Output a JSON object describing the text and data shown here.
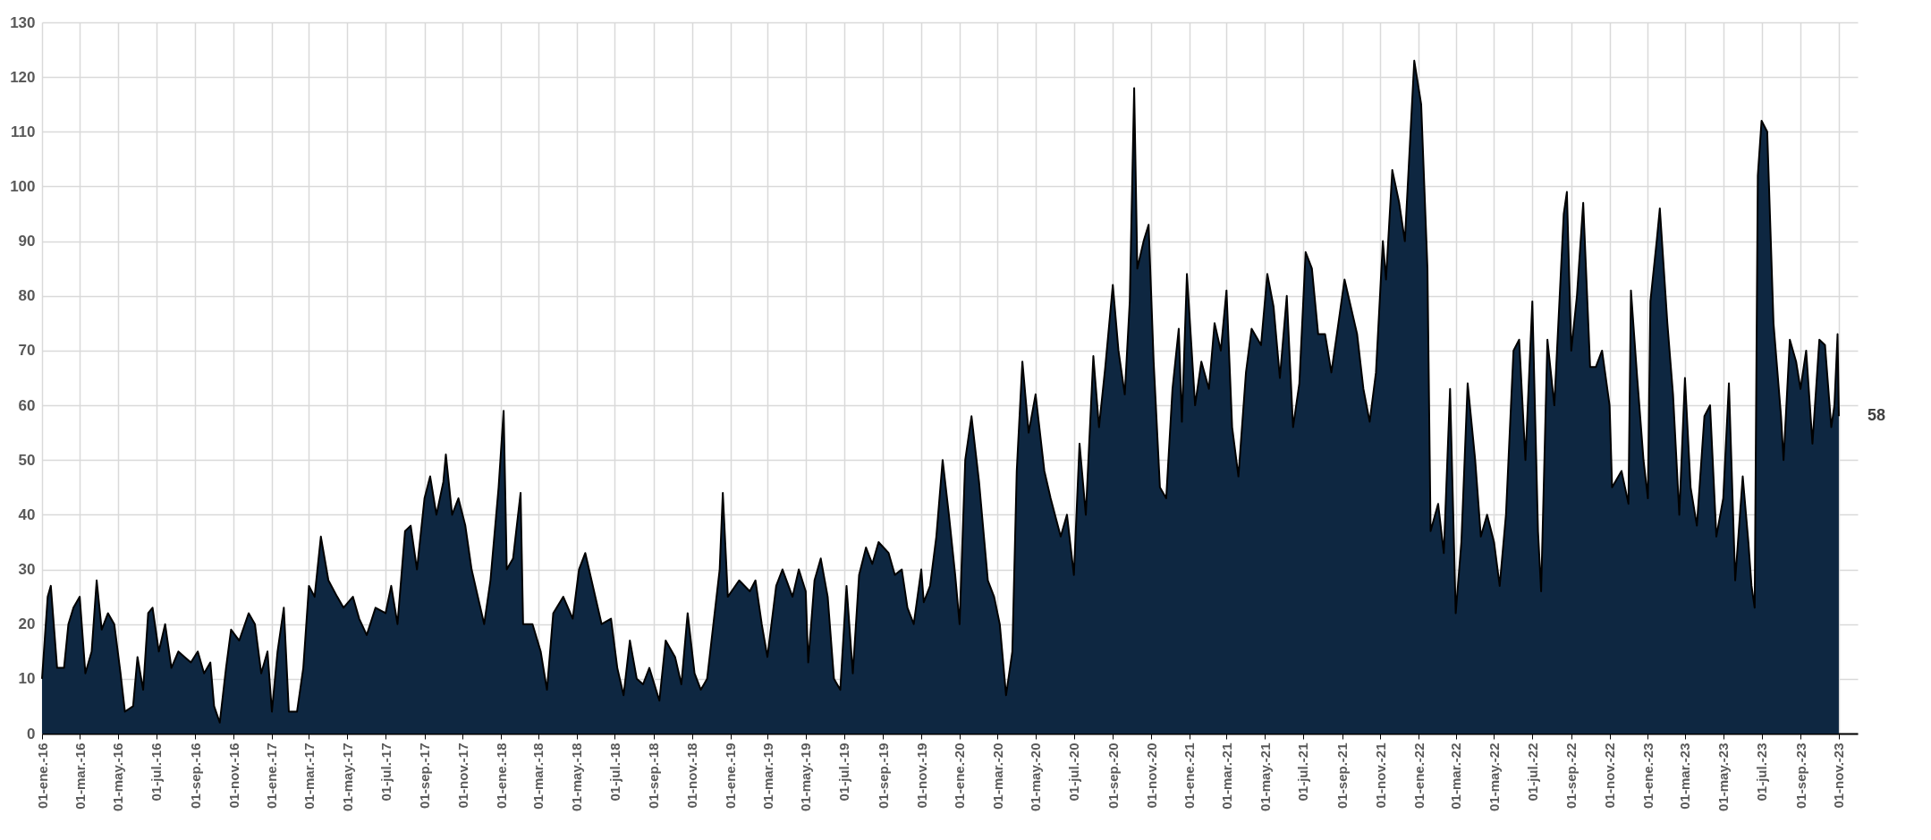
{
  "chart_data": {
    "type": "area",
    "color": "#0e2741",
    "x": [
      "2016-01-01",
      "2016-01-10",
      "2016-01-15",
      "2016-01-25",
      "2016-02-05",
      "2016-02-12",
      "2016-02-20",
      "2016-03-01",
      "2016-03-10",
      "2016-03-20",
      "2016-03-28",
      "2016-04-05",
      "2016-04-15",
      "2016-04-25",
      "2016-05-05",
      "2016-05-12",
      "2016-05-25",
      "2016-06-01",
      "2016-06-10",
      "2016-06-18",
      "2016-06-25",
      "2016-07-05",
      "2016-07-15",
      "2016-07-25",
      "2016-08-05",
      "2016-08-15",
      "2016-08-25",
      "2016-09-05",
      "2016-09-15",
      "2016-09-25",
      "2016-10-01",
      "2016-10-10",
      "2016-10-20",
      "2016-10-28",
      "2016-11-10",
      "2016-11-25",
      "2016-12-05",
      "2016-12-15",
      "2016-12-25",
      "2017-01-01",
      "2017-01-10",
      "2017-01-20",
      "2017-01-28",
      "2017-02-10",
      "2017-02-20",
      "2017-03-01",
      "2017-03-10",
      "2017-03-20",
      "2017-04-01",
      "2017-04-15",
      "2017-04-25",
      "2017-05-10",
      "2017-05-20",
      "2017-06-01",
      "2017-06-15",
      "2017-07-01",
      "2017-07-10",
      "2017-07-20",
      "2017-08-01",
      "2017-08-10",
      "2017-08-20",
      "2017-09-01",
      "2017-09-10",
      "2017-09-20",
      "2017-10-01",
      "2017-10-05",
      "2017-10-15",
      "2017-10-25",
      "2017-11-05",
      "2017-11-15",
      "2017-11-25",
      "2017-12-05",
      "2017-12-15",
      "2017-12-28",
      "2018-01-05",
      "2018-01-10",
      "2018-01-20",
      "2018-02-01",
      "2018-02-05",
      "2018-02-20",
      "2018-03-05",
      "2018-03-15",
      "2018-03-25",
      "2018-04-10",
      "2018-04-25",
      "2018-05-05",
      "2018-05-15",
      "2018-05-25",
      "2018-06-10",
      "2018-06-25",
      "2018-07-05",
      "2018-07-15",
      "2018-07-25",
      "2018-08-05",
      "2018-08-15",
      "2018-08-25",
      "2018-09-10",
      "2018-09-20",
      "2018-10-05",
      "2018-10-15",
      "2018-10-25",
      "2018-11-05",
      "2018-11-15",
      "2018-11-25",
      "2018-12-05",
      "2018-12-15",
      "2018-12-20",
      "2018-12-28",
      "2019-01-15",
      "2019-02-01",
      "2019-02-10",
      "2019-02-20",
      "2019-03-01",
      "2019-03-15",
      "2019-03-25",
      "2019-04-10",
      "2019-04-20",
      "2019-05-01",
      "2019-05-05",
      "2019-05-15",
      "2019-05-25",
      "2019-06-05",
      "2019-06-15",
      "2019-06-25",
      "2019-07-05",
      "2019-07-15",
      "2019-07-25",
      "2019-08-05",
      "2019-08-15",
      "2019-08-25",
      "2019-09-10",
      "2019-09-20",
      "2019-10-01",
      "2019-10-10",
      "2019-10-20",
      "2019-11-01",
      "2019-11-05",
      "2019-11-15",
      "2019-11-25",
      "2019-12-05",
      "2019-12-15",
      "2019-12-25",
      "2020-01-01",
      "2020-01-10",
      "2020-01-20",
      "2020-02-01",
      "2020-02-15",
      "2020-02-25",
      "2020-03-05",
      "2020-03-15",
      "2020-03-25",
      "2020-04-01",
      "2020-04-10",
      "2020-04-20",
      "2020-05-01",
      "2020-05-15",
      "2020-05-25",
      "2020-06-10",
      "2020-06-20",
      "2020-07-01",
      "2020-07-10",
      "2020-07-20",
      "2020-08-01",
      "2020-08-10",
      "2020-08-20",
      "2020-09-01",
      "2020-09-10",
      "2020-09-20",
      "2020-09-28",
      "2020-10-05",
      "2020-10-10",
      "2020-10-20",
      "2020-10-28",
      "2020-11-05",
      "2020-11-15",
      "2020-11-25",
      "2020-12-05",
      "2020-12-15",
      "2020-12-20",
      "2020-12-28",
      "2021-01-10",
      "2021-01-20",
      "2021-02-01",
      "2021-02-10",
      "2021-02-20",
      "2021-03-01",
      "2021-03-10",
      "2021-03-20",
      "2021-04-01",
      "2021-04-10",
      "2021-04-25",
      "2021-05-05",
      "2021-05-15",
      "2021-05-25",
      "2021-06-05",
      "2021-06-15",
      "2021-06-25",
      "2021-07-05",
      "2021-07-15",
      "2021-07-25",
      "2021-08-05",
      "2021-08-15",
      "2021-08-25",
      "2021-09-05",
      "2021-09-15",
      "2021-09-25",
      "2021-10-05",
      "2021-10-15",
      "2021-10-25",
      "2021-11-05",
      "2021-11-10",
      "2021-11-20",
      "2021-12-01",
      "2021-12-10",
      "2021-12-25",
      "2022-01-05",
      "2022-01-15",
      "2022-01-20",
      "2022-02-01",
      "2022-02-10",
      "2022-02-20",
      "2022-03-01",
      "2022-03-10",
      "2022-03-20",
      "2022-04-01",
      "2022-04-10",
      "2022-04-20",
      "2022-05-01",
      "2022-05-10",
      "2022-05-20",
      "2022-06-01",
      "2022-06-10",
      "2022-06-20",
      "2022-07-01",
      "2022-07-10",
      "2022-07-15",
      "2022-07-25",
      "2022-08-05",
      "2022-08-20",
      "2022-08-25",
      "2022-09-01",
      "2022-09-10",
      "2022-09-20",
      "2022-10-01",
      "2022-10-10",
      "2022-10-20",
      "2022-11-01",
      "2022-11-05",
      "2022-11-20",
      "2022-12-01",
      "2022-12-05",
      "2022-12-15",
      "2022-12-25",
      "2023-01-01",
      "2023-01-05",
      "2023-01-15",
      "2023-01-20",
      "2023-02-01",
      "2023-02-10",
      "2023-02-20",
      "2023-03-01",
      "2023-03-10",
      "2023-03-20",
      "2023-04-01",
      "2023-04-10",
      "2023-04-20",
      "2023-05-01",
      "2023-05-10",
      "2023-05-20",
      "2023-06-01",
      "2023-06-10",
      "2023-06-15",
      "2023-06-20",
      "2023-06-25",
      "2023-07-01",
      "2023-07-10",
      "2023-07-20",
      "2023-08-01",
      "2023-08-05",
      "2023-08-15",
      "2023-08-25",
      "2023-09-01",
      "2023-09-10",
      "2023-09-20",
      "2023-10-01",
      "2023-10-10",
      "2023-10-20",
      "2023-10-25",
      "2023-10-30",
      "2023-11-01"
    ],
    "values": [
      10,
      25,
      27,
      12,
      12,
      20,
      23,
      25,
      11,
      15,
      28,
      19,
      22,
      20,
      11,
      4,
      5,
      14,
      8,
      22,
      23,
      15,
      20,
      12,
      15,
      14,
      13,
      15,
      11,
      13,
      5,
      2,
      12,
      19,
      17,
      22,
      20,
      11,
      15,
      4,
      15,
      23,
      4,
      4,
      12,
      27,
      25,
      36,
      28,
      25,
      23,
      25,
      21,
      18,
      23,
      22,
      27,
      20,
      37,
      38,
      30,
      43,
      47,
      40,
      46,
      51,
      40,
      43,
      38,
      30,
      25,
      20,
      28,
      45,
      59,
      30,
      32,
      44,
      20,
      20,
      15,
      8,
      22,
      25,
      21,
      30,
      33,
      28,
      20,
      21,
      12,
      7,
      17,
      10,
      9,
      12,
      6,
      17,
      14,
      9,
      22,
      11,
      8,
      10,
      20,
      30,
      44,
      25,
      28,
      26,
      28,
      20,
      14,
      27,
      30,
      25,
      30,
      26,
      13,
      28,
      32,
      25,
      10,
      8,
      27,
      11,
      29,
      34,
      31,
      35,
      33,
      29,
      30,
      23,
      20,
      30,
      24,
      27,
      36,
      50,
      40,
      29,
      20,
      50,
      58,
      46,
      28,
      25,
      20,
      7,
      15,
      48,
      68,
      55,
      62,
      48,
      43,
      36,
      40,
      29,
      53,
      40,
      69,
      56,
      67,
      82,
      70,
      62,
      79,
      118,
      85,
      90,
      93,
      68,
      45,
      43,
      63,
      74,
      57,
      84,
      60,
      68,
      63,
      75,
      70,
      81,
      56,
      47,
      66,
      74,
      71,
      84,
      78,
      65,
      80,
      56,
      64,
      88,
      85,
      73,
      73,
      66,
      74,
      83,
      78,
      73,
      63,
      57,
      66,
      90,
      83,
      103,
      97,
      90,
      123,
      115,
      85,
      37,
      42,
      33,
      63,
      22,
      35,
      64,
      50,
      36,
      40,
      35,
      27,
      40,
      70,
      72,
      50,
      79,
      37,
      26,
      72,
      60,
      95,
      99,
      70,
      80,
      97,
      67,
      67,
      70,
      60,
      45,
      48,
      42,
      81,
      65,
      50,
      43,
      79,
      90,
      96,
      75,
      62,
      40,
      65,
      45,
      38,
      58,
      60,
      36,
      43,
      64,
      28,
      47,
      35,
      27,
      23,
      102,
      112,
      110,
      75,
      58,
      50,
      72,
      68,
      63,
      70,
      53,
      72,
      71,
      56,
      60,
      73,
      58
    ],
    "xlim": [
      "2016-01-01",
      "2023-12-01"
    ],
    "xticks": [
      {
        "value": "2016-01-01",
        "label": "01-ene.-16"
      },
      {
        "value": "2016-03-01",
        "label": "01-mar.-16"
      },
      {
        "value": "2016-05-01",
        "label": "01-may.-16"
      },
      {
        "value": "2016-07-01",
        "label": "01-jul.-16"
      },
      {
        "value": "2016-09-01",
        "label": "01-sep.-16"
      },
      {
        "value": "2016-11-01",
        "label": "01-nov.-16"
      },
      {
        "value": "2017-01-01",
        "label": "01-ene.-17"
      },
      {
        "value": "2017-03-01",
        "label": "01-mar.-17"
      },
      {
        "value": "2017-05-01",
        "label": "01-may.-17"
      },
      {
        "value": "2017-07-01",
        "label": "01-jul.-17"
      },
      {
        "value": "2017-09-01",
        "label": "01-sep.-17"
      },
      {
        "value": "2017-11-01",
        "label": "01-nov.-17"
      },
      {
        "value": "2018-01-01",
        "label": "01-ene.-18"
      },
      {
        "value": "2018-03-01",
        "label": "01-mar.-18"
      },
      {
        "value": "2018-05-01",
        "label": "01-may.-18"
      },
      {
        "value": "2018-07-01",
        "label": "01-jul.-18"
      },
      {
        "value": "2018-09-01",
        "label": "01-sep.-18"
      },
      {
        "value": "2018-11-01",
        "label": "01-nov.-18"
      },
      {
        "value": "2019-01-01",
        "label": "01-ene.-19"
      },
      {
        "value": "2019-03-01",
        "label": "01-mar.-19"
      },
      {
        "value": "2019-05-01",
        "label": "01-may.-19"
      },
      {
        "value": "2019-07-01",
        "label": "01-jul.-19"
      },
      {
        "value": "2019-09-01",
        "label": "01-sep.-19"
      },
      {
        "value": "2019-11-01",
        "label": "01-nov.-19"
      },
      {
        "value": "2020-01-01",
        "label": "01-ene.-20"
      },
      {
        "value": "2020-03-01",
        "label": "01-mar.-20"
      },
      {
        "value": "2020-05-01",
        "label": "01-may.-20"
      },
      {
        "value": "2020-07-01",
        "label": "01-jul.-20"
      },
      {
        "value": "2020-09-01",
        "label": "01-sep.-20"
      },
      {
        "value": "2020-11-01",
        "label": "01-nov.-20"
      },
      {
        "value": "2021-01-01",
        "label": "01-ene.-21"
      },
      {
        "value": "2021-03-01",
        "label": "01-mar.-21"
      },
      {
        "value": "2021-05-01",
        "label": "01-may.-21"
      },
      {
        "value": "2021-07-01",
        "label": "01-jul.-21"
      },
      {
        "value": "2021-09-01",
        "label": "01-sep.-21"
      },
      {
        "value": "2021-11-01",
        "label": "01-nov.-21"
      },
      {
        "value": "2022-01-01",
        "label": "01-ene.-22"
      },
      {
        "value": "2022-03-01",
        "label": "01-mar.-22"
      },
      {
        "value": "2022-05-01",
        "label": "01-may.-22"
      },
      {
        "value": "2022-07-01",
        "label": "01-jul.-22"
      },
      {
        "value": "2022-09-01",
        "label": "01-sep.-22"
      },
      {
        "value": "2022-11-01",
        "label": "01-nov.-22"
      },
      {
        "value": "2023-01-01",
        "label": "01-ene.-23"
      },
      {
        "value": "2023-03-01",
        "label": "01-mar.-23"
      },
      {
        "value": "2023-05-01",
        "label": "01-may.-23"
      },
      {
        "value": "2023-07-01",
        "label": "01-jul.-23"
      },
      {
        "value": "2023-09-01",
        "label": "01-sep.-23"
      },
      {
        "value": "2023-11-01",
        "label": "01-nov.-23"
      }
    ],
    "ylim": [
      0,
      130
    ],
    "yticks": [
      0,
      10,
      20,
      30,
      40,
      50,
      60,
      70,
      80,
      90,
      100,
      110,
      120,
      130
    ],
    "grid": true,
    "annotations": [
      {
        "text": "58",
        "x": "2023-11-01",
        "y": 58
      }
    ]
  }
}
